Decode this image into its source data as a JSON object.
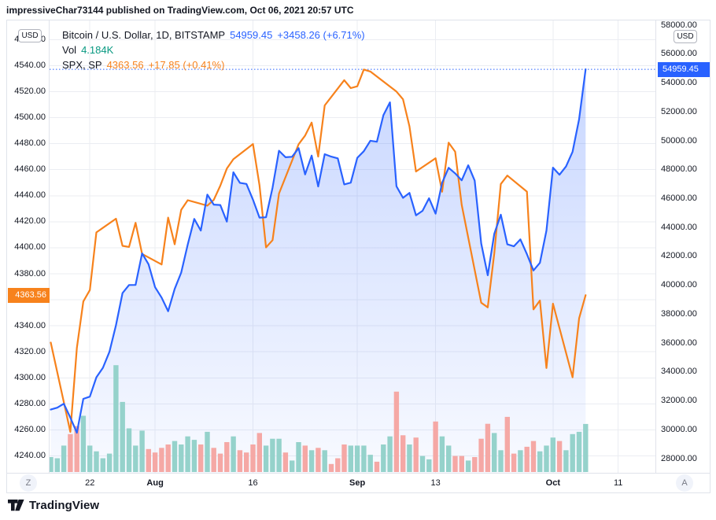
{
  "attribution": "impressiveChar73144 published on TradingView.com, Oct 06, 2021 20:57 UTC",
  "legend": {
    "row1": {
      "title": "Bitcoin / U.S. Dollar, 1D, BITSTAMP",
      "price": "54959.45",
      "change": "+3458.26 (+6.71%)"
    },
    "row2": {
      "label": "Vol",
      "value": "4.184K"
    },
    "row3": {
      "title": "SPX, SP",
      "price": "4363.56",
      "change": "+17.85 (+0.41%)"
    }
  },
  "axes": {
    "left": {
      "currency": "USD",
      "badge": "4363.56",
      "ticks": [
        "4560.00",
        "4540.00",
        "4520.00",
        "4500.00",
        "4480.00",
        "4460.00",
        "4440.00",
        "4420.00",
        "4400.00",
        "4380.00",
        "4360.00",
        "4340.00",
        "4320.00",
        "4300.00",
        "4280.00",
        "4260.00",
        "4240.00"
      ]
    },
    "right": {
      "currency": "USD",
      "badge": "54959.45",
      "ticks": [
        "58000.00",
        "56000.00",
        "54000.00",
        "52000.00",
        "50000.00",
        "48000.00",
        "46000.00",
        "44000.00",
        "42000.00",
        "40000.00",
        "38000.00",
        "36000.00",
        "34000.00",
        "32000.00",
        "30000.00",
        "28000.00"
      ]
    },
    "time": {
      "labels": [
        {
          "text": "22",
          "day_index": 6,
          "month": false
        },
        {
          "text": "Aug",
          "day_index": 16,
          "month": true
        },
        {
          "text": "16",
          "day_index": 31,
          "month": false
        },
        {
          "text": "Sep",
          "day_index": 47,
          "month": true
        },
        {
          "text": "13",
          "day_index": 59,
          "month": false
        },
        {
          "text": "Oct",
          "day_index": 77,
          "month": true
        },
        {
          "text": "11",
          "day_index": 87,
          "month": false
        }
      ]
    }
  },
  "buttons": {
    "left": "Z",
    "right": "A"
  },
  "footer": {
    "brand": "TradingView"
  },
  "colors": {
    "btc_line": "#2962FF",
    "spx_line": "#F7821C",
    "vol_up": "#95D2CB",
    "vol_down": "#F5A8A5",
    "grid": "#EBEDF2",
    "area_top": "rgba(41,98,255,0.26)",
    "area_bottom": "rgba(41,98,255,0.03)",
    "badge_blue": "#2962FF",
    "badge_orange": "#F7821C",
    "teal_text": "#089981"
  },
  "chart_data": {
    "type": "line",
    "title": "Bitcoin / U.S. Dollar, 1D, BITSTAMP with SPX, SP overlay and volume",
    "interval": "1D",
    "exchange": "BITSTAMP",
    "x_start_date": "2021-07-16",
    "x_end_date": "2021-10-06",
    "x_note": "one value per calendar day, index 0 = 2021-07-16",
    "left_axis_label": "USD (SPX scale)",
    "right_axis_label": "USD (BTC scale)",
    "left_axis_range": [
      4227,
      4575
    ],
    "right_axis_range": [
      27020,
      58340
    ],
    "grid": true,
    "series": [
      {
        "name": "BTC/USD close",
        "axis": "right",
        "last_value": 54959.45,
        "change": "+3458.26 (+6.71%)",
        "values": [
          31400,
          31530,
          31800,
          30840,
          29790,
          32140,
          32290,
          33630,
          34290,
          35400,
          37240,
          39460,
          40020,
          40030,
          42210,
          41460,
          39870,
          39150,
          38210,
          39750,
          40880,
          42820,
          44600,
          43790,
          46280,
          45590,
          45560,
          44410,
          47830,
          47100,
          47020,
          45930,
          44690,
          44710,
          46760,
          49320,
          48870,
          48900,
          49500,
          47680,
          48980,
          46850,
          49080,
          48910,
          48790,
          46990,
          47110,
          48830,
          49290,
          50010,
          49940,
          51780,
          52670,
          46860,
          46060,
          46400,
          44850,
          45160,
          46030,
          44960,
          47100,
          48140,
          47750,
          47270,
          48310,
          47250,
          42900,
          40700,
          43570,
          44890,
          42840,
          42700,
          43180,
          42160,
          41030,
          41560,
          43790,
          48150,
          47660,
          48230,
          49250,
          51500,
          54959.45
        ]
      },
      {
        "name": "SPX close",
        "axis": "left",
        "last_value": 4363.56,
        "change": "+17.85 (+0.41%)",
        "values": [
          4327.16,
          null,
          null,
          4258.49,
          4323.06,
          4358.69,
          4367.48,
          4411.79,
          null,
          null,
          4422.3,
          4401.46,
          4400.64,
          4419.15,
          4395.26,
          null,
          null,
          4387.16,
          4423.15,
          4402.66,
          4429.1,
          4436.52,
          null,
          null,
          4432.35,
          4436.75,
          4447.7,
          4460.83,
          4468.0,
          null,
          null,
          4479.71,
          4448.08,
          4400.27,
          4405.8,
          4441.67,
          null,
          null,
          4479.53,
          4486.23,
          4496.19,
          4470.0,
          4509.37,
          null,
          null,
          4528.79,
          4522.68,
          4524.09,
          4536.95,
          4535.43,
          null,
          null,
          null,
          4520.03,
          4514.07,
          4493.28,
          4458.58,
          null,
          null,
          4468.73,
          4443.05,
          4480.7,
          4473.75,
          4432.99,
          null,
          null,
          4357.73,
          4354.19,
          4395.64,
          4448.98,
          4455.48,
          null,
          null,
          4443.11,
          4352.63,
          4359.46,
          4307.54,
          4357.04,
          null,
          null,
          4300.46,
          4345.72,
          4363.56
        ]
      }
    ],
    "volume_k": {
      "name": "Vol",
      "unit": "K BTC",
      "last_value": 4.184,
      "values": [
        1.3,
        1.2,
        2.3,
        3.3,
        4.0,
        4.9,
        2.3,
        1.8,
        1.2,
        1.6,
        9.3,
        6.1,
        3.8,
        2.3,
        3.6,
        2.0,
        1.7,
        2.1,
        2.4,
        2.7,
        2.4,
        3.1,
        2.8,
        2.4,
        3.5,
        2.1,
        1.6,
        2.6,
        3.1,
        1.9,
        1.7,
        2.4,
        3.4,
        2.3,
        2.9,
        2.9,
        1.7,
        1.0,
        2.6,
        2.3,
        1.9,
        2.1,
        1.9,
        0.7,
        1.2,
        2.4,
        2.3,
        2.3,
        2.3,
        1.5,
        0.9,
        2.4,
        3.1,
        7.0,
        3.2,
        2.4,
        3.0,
        1.4,
        1.1,
        4.4,
        3.1,
        2.3,
        1.4,
        1.4,
        1.0,
        1.3,
        2.9,
        4.2,
        3.4,
        1.9,
        4.8,
        1.6,
        1.9,
        2.2,
        2.7,
        1.8,
        2.3,
        3.0,
        2.7,
        1.9,
        3.3,
        3.5,
        4.184
      ]
    },
    "price_line": {
      "value": 54959.45,
      "axis": "right",
      "style": "dotted",
      "color": "#2962FF"
    }
  }
}
